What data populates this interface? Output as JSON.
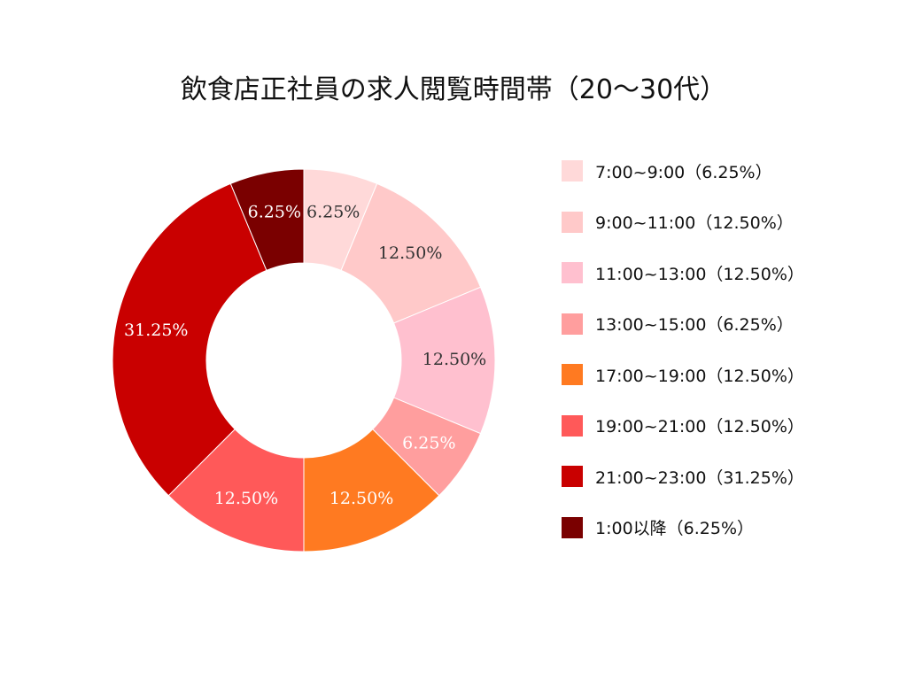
{
  "chart_data": {
    "type": "donut",
    "title": "飲食店正社員の求人閲覧時間帯（20〜30代）",
    "legend_position": "right",
    "slices": [
      {
        "legend": "7:00~9:00（6.25%）",
        "label": "6.25%",
        "value": 6.25,
        "color": "#FFD9D9",
        "label_color": "#333333"
      },
      {
        "legend": "9:00~11:00（12.50%）",
        "label": "12.50%",
        "value": 12.5,
        "color": "#FFC9C9",
        "label_color": "#333333"
      },
      {
        "legend": "11:00~13:00（12.50%）",
        "label": "12.50%",
        "value": 12.5,
        "color": "#FFC0CF",
        "label_color": "#333333"
      },
      {
        "legend": "13:00~15:00（6.25%）",
        "label": "6.25%",
        "value": 6.25,
        "color": "#FF9E9E",
        "label_color": "#ffffff"
      },
      {
        "legend": "17:00~19:00（12.50%）",
        "label": "12.50%",
        "value": 12.5,
        "color": "#FF7A21",
        "label_color": "#ffffff"
      },
      {
        "legend": "19:00~21:00（12.50%）",
        "label": "12.50%",
        "value": 12.5,
        "color": "#FF5959",
        "label_color": "#ffffff"
      },
      {
        "legend": "21:00~23:00（31.25%）",
        "label": "31.25%",
        "value": 31.25,
        "color": "#C90000",
        "label_color": "#ffffff"
      },
      {
        "legend": "1:00以降（6.25%）",
        "label": "6.25%",
        "value": 6.25,
        "color": "#7A0000",
        "label_color": "#ffffff"
      }
    ]
  }
}
